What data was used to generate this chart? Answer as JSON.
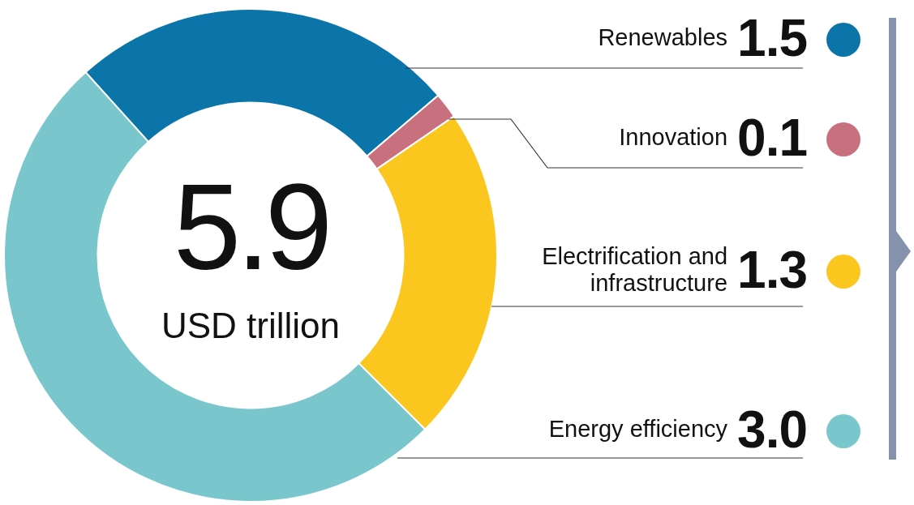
{
  "chart_data": {
    "type": "donut",
    "categories": [
      "Renewables",
      "Innovation",
      "Electrification and infrastructure",
      "Energy efficiency"
    ],
    "values": [
      1.5,
      0.1,
      1.3,
      3.0
    ],
    "colors": [
      "#0b74a8",
      "#c9707e",
      "#fbc61e",
      "#79c7cc"
    ],
    "value_labels": [
      "1.5",
      "0.1",
      "1.3",
      "3.0"
    ],
    "annotations": [
      "5.9",
      "USD trillion"
    ]
  }
}
